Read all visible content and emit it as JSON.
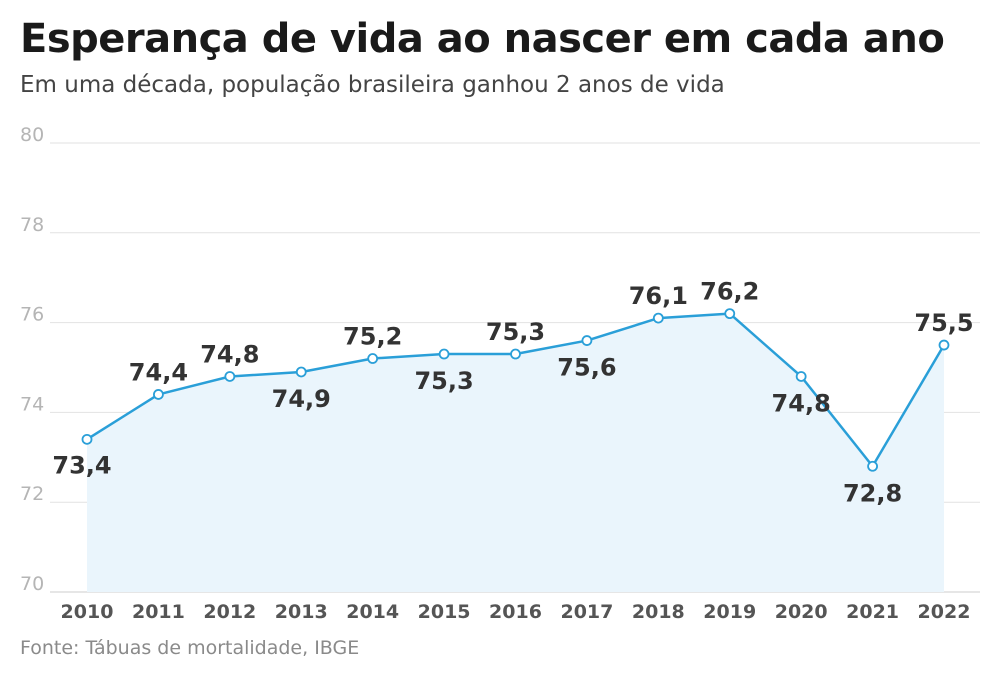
{
  "header": {
    "title": "Esperança de vida ao nascer em cada ano",
    "subtitle": "Em uma década, população brasileira ganhou 2 anos de vida"
  },
  "footer": {
    "source": "Fonte: Tábuas de mortalidade, IBGE"
  },
  "colors": {
    "line": "#2a9fd8",
    "area": "#eaf5fc",
    "grid": "#e2e2e2"
  },
  "chart_data": {
    "type": "line",
    "title": "Esperança de vida ao nascer em cada ano",
    "subtitle": "Em uma década, população brasileira ganhou 2 anos de vida",
    "xlabel": "",
    "ylabel": "",
    "ylim": [
      70,
      80
    ],
    "yticks": [
      70,
      72,
      74,
      76,
      78,
      80
    ],
    "grid": true,
    "area_fill": true,
    "categories": [
      "2010",
      "2011",
      "2012",
      "2013",
      "2014",
      "2015",
      "2016",
      "2017",
      "2018",
      "2019",
      "2020",
      "2021",
      "2022"
    ],
    "values": [
      73.4,
      74.4,
      74.8,
      74.9,
      75.2,
      75.3,
      75.3,
      75.6,
      76.1,
      76.2,
      74.8,
      72.8,
      75.5
    ],
    "labels": [
      "73,4",
      "74,4",
      "74,8",
      "74,9",
      "75,2",
      "75,3",
      "75,3",
      "75,6",
      "76,1",
      "76,2",
      "74,8",
      "72,8",
      "75,5"
    ],
    "label_positions": [
      "below",
      "above",
      "above",
      "below",
      "above",
      "below",
      "above",
      "below",
      "above",
      "above",
      "below",
      "below",
      "above"
    ]
  }
}
